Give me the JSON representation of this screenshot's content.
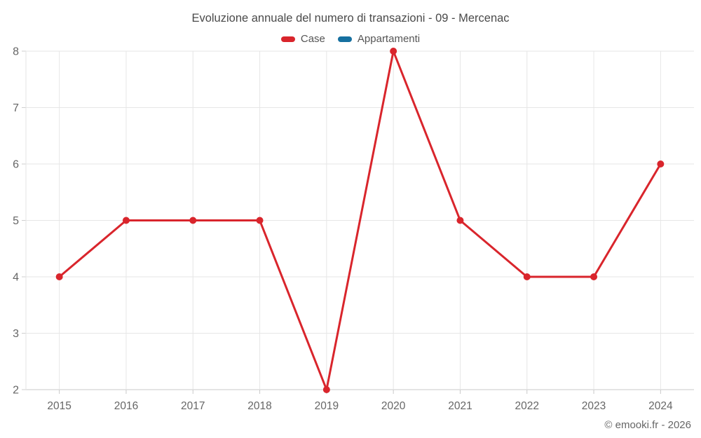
{
  "chart": {
    "title": "Evoluzione annuale del numero di transazioni - 09 - Mercenac",
    "legend": [
      {
        "label": "Case",
        "color": "#d9252c"
      },
      {
        "label": "Appartamenti",
        "color": "#1670a0"
      }
    ],
    "copyright": "© emooki.fr - 2026"
  },
  "chart_data": {
    "type": "line",
    "title": "Evoluzione annuale del numero di transazioni - 09 - Mercenac",
    "categories": [
      "2015",
      "2016",
      "2017",
      "2018",
      "2019",
      "2020",
      "2021",
      "2022",
      "2023",
      "2024"
    ],
    "series": [
      {
        "name": "Case",
        "color": "#d9252c",
        "values": [
          4,
          5,
          5,
          5,
          2,
          8,
          5,
          4,
          4,
          6
        ]
      },
      {
        "name": "Appartamenti",
        "color": "#1670a0",
        "values": []
      }
    ],
    "xlabel": "",
    "ylabel": "",
    "ylim": [
      2,
      8
    ],
    "yticks": [
      2,
      3,
      4,
      5,
      6,
      7,
      8
    ],
    "grid": true,
    "legend_position": "top",
    "marker": "circle"
  },
  "colors": {
    "gridline": "#e6e6e6",
    "axis_line": "#c9c9c9",
    "tick": "#cfcfcf",
    "axis_text": "#666666",
    "title_text": "#4a4a4a"
  }
}
